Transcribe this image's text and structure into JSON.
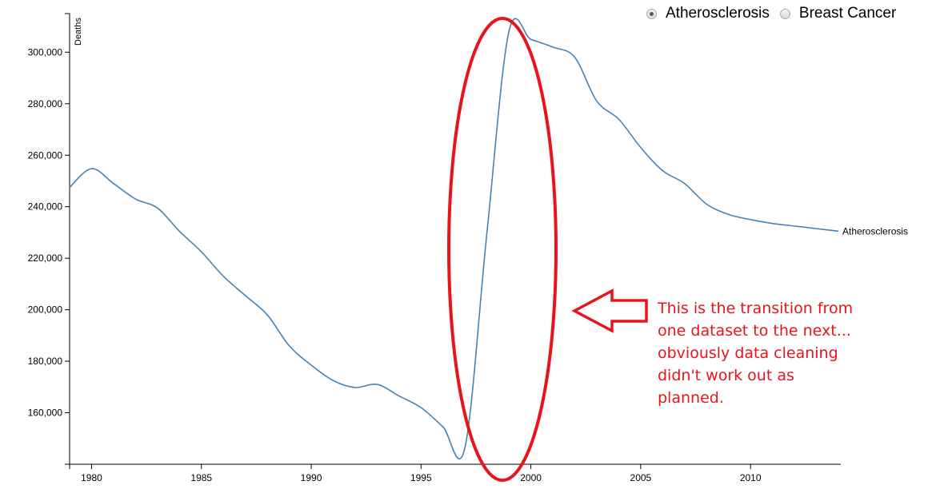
{
  "legend": {
    "options": [
      {
        "label": "Atherosclerosis",
        "selected": true
      },
      {
        "label": "Breast Cancer",
        "selected": false
      }
    ]
  },
  "annotation": {
    "text": "This is the transition from\none dataset to the next...\nobviously data cleaning\ndidn't work out as\nplanned.",
    "color": "#e8141c"
  },
  "chart_data": {
    "type": "line",
    "ylabel": "Deaths",
    "xlabel": "",
    "x_ticks": [
      1980,
      1985,
      1990,
      1995,
      2000,
      2005,
      2010
    ],
    "y_ticks": [
      160000,
      180000,
      200000,
      220000,
      240000,
      260000,
      280000,
      300000
    ],
    "y_tick_labels": [
      "160,000",
      "180,000",
      "200,000",
      "220,000",
      "240,000",
      "260,000",
      "280,000",
      "300,000"
    ],
    "xlim": [
      1979,
      2014
    ],
    "ylim": [
      140000,
      315000
    ],
    "line_color": "#4682b4",
    "series": [
      {
        "name": "Atherosclerosis",
        "x": [
          1979,
          1980,
          1981,
          1982,
          1983,
          1984,
          1985,
          1986,
          1987,
          1988,
          1989,
          1990,
          1991,
          1992,
          1993,
          1994,
          1995,
          1996,
          1997,
          1998,
          1999,
          2000,
          2001,
          2002,
          2003,
          2004,
          2005,
          2006,
          2007,
          2008,
          2009,
          2010,
          2011,
          2012,
          2013,
          2014
        ],
        "y": [
          247500,
          254800,
          249000,
          243000,
          239500,
          230500,
          222500,
          213000,
          205500,
          198000,
          186000,
          178500,
          172500,
          169800,
          171000,
          166500,
          162000,
          154500,
          146500,
          230000,
          308000,
          305000,
          302000,
          298000,
          281000,
          274000,
          263000,
          254000,
          249000,
          241000,
          237000,
          235000,
          233500,
          232500,
          231500,
          230500
        ]
      }
    ]
  },
  "annotation_marks": {
    "ellipse_color": "#e8141c",
    "arrow_direction": "left"
  }
}
